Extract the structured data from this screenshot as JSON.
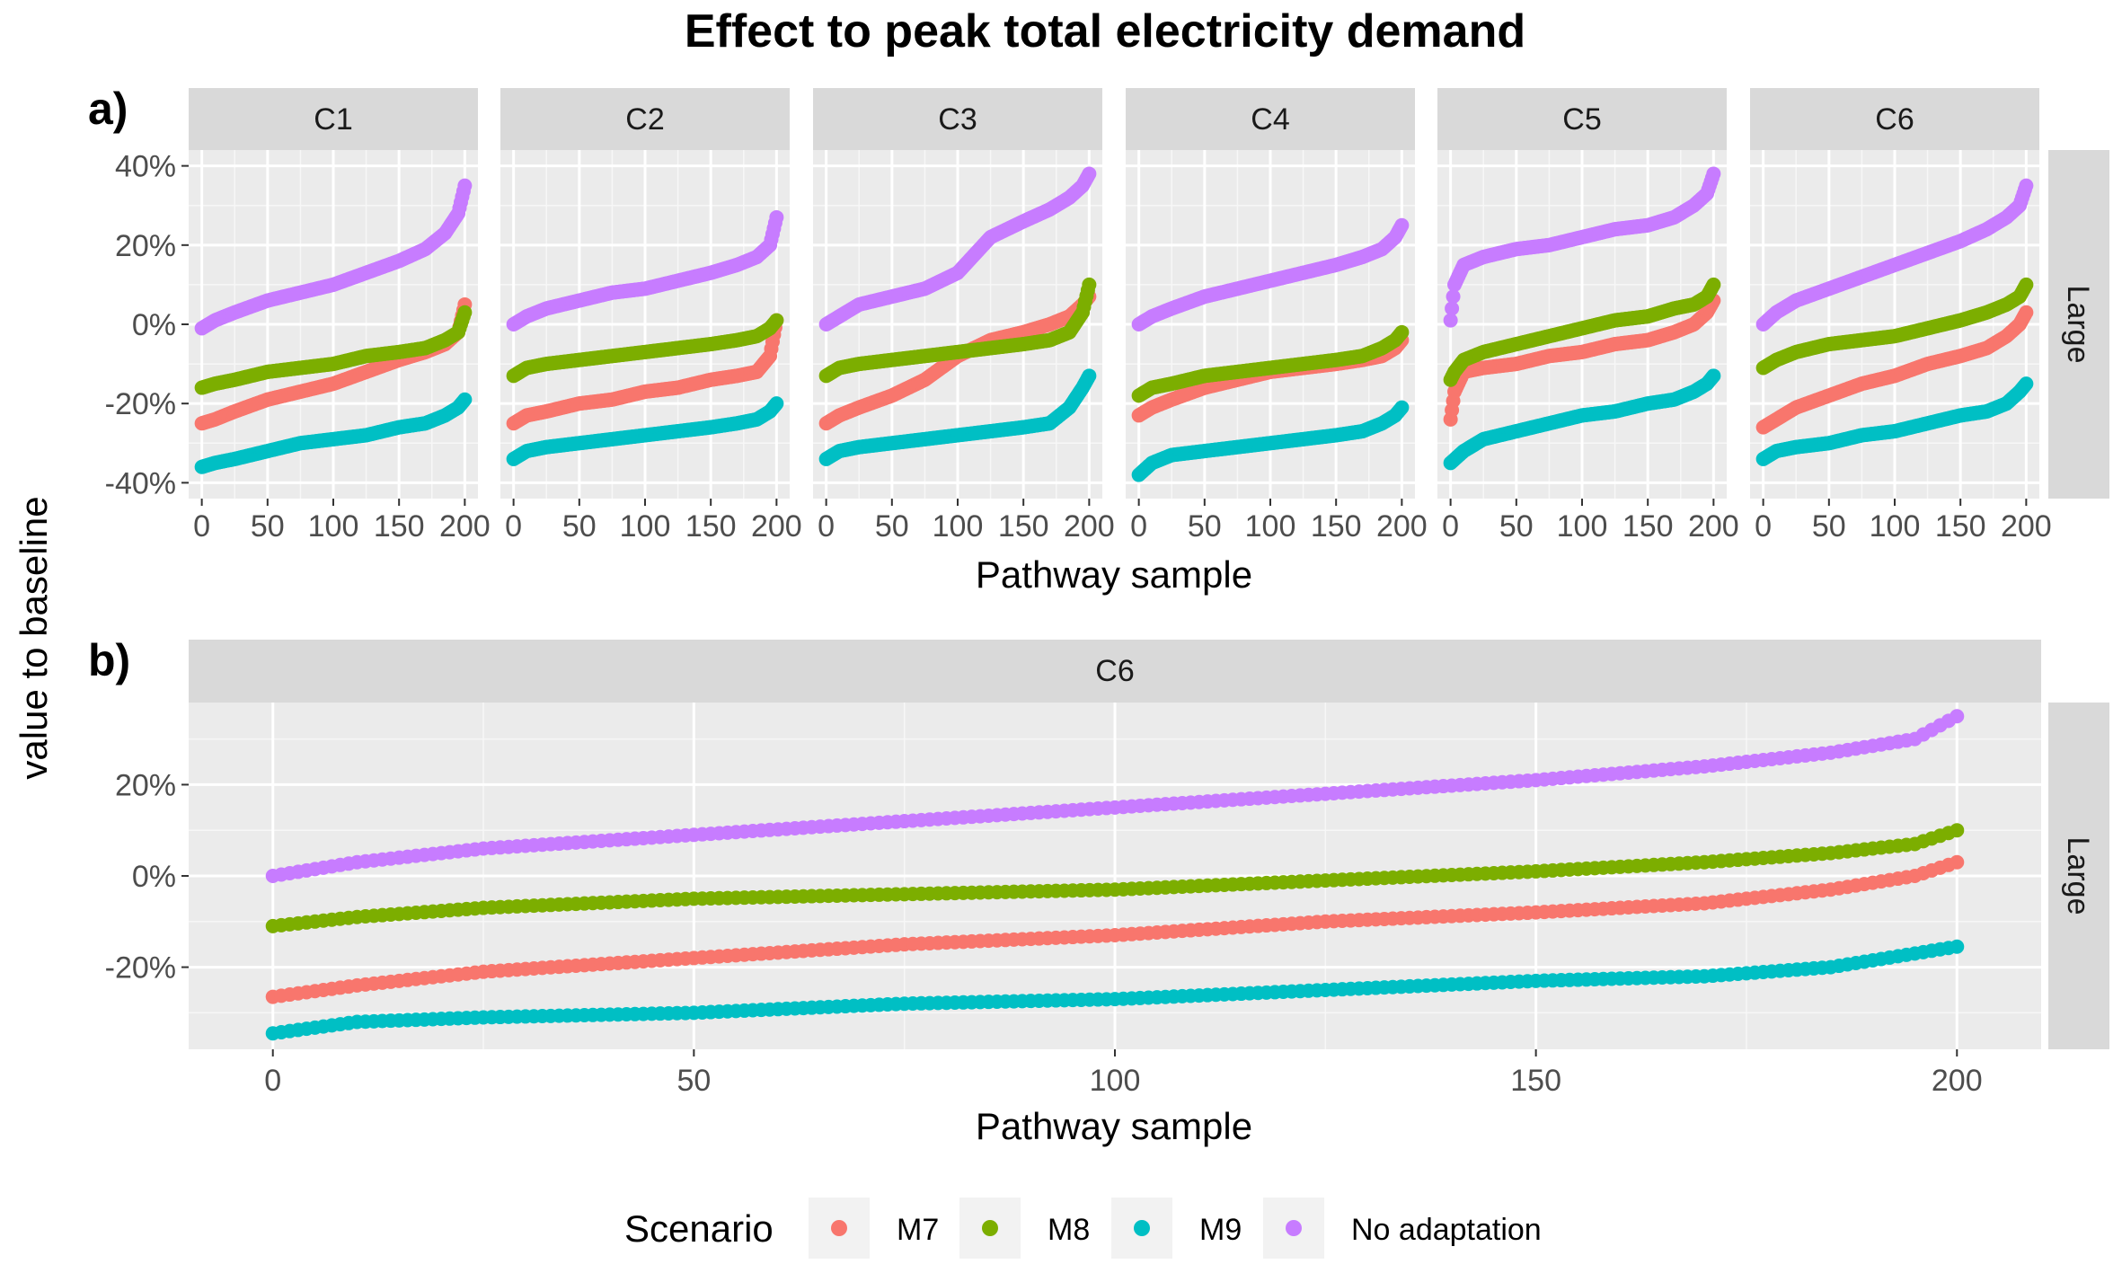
{
  "title": "Effect to peak total electricity demand",
  "ylabel": "value to baseline",
  "panel_a_tag": "a)",
  "panel_b_tag": "b)",
  "legend": {
    "title": "Scenario",
    "items": [
      {
        "name": "M7",
        "color": "#F8766D"
      },
      {
        "name": "M8",
        "color": "#7CAE00"
      },
      {
        "name": "M9",
        "color": "#00BFC4"
      },
      {
        "name": "No adaptation",
        "color": "#C77CFF"
      }
    ]
  },
  "chart_data": [
    {
      "type": "scatter",
      "panel": "a)",
      "facet_row_label": "Large",
      "xlabel": "Pathway sample",
      "ylabel": "value to baseline",
      "xlim": [
        0,
        200
      ],
      "ylim": [
        -40,
        40
      ],
      "x_ticks": [
        0,
        50,
        100,
        150,
        200
      ],
      "x_tick_labels": [
        "0",
        "50",
        "100",
        "150",
        "200"
      ],
      "y_ticks": [
        -40,
        -20,
        0,
        20,
        40
      ],
      "y_tick_labels": [
        "-40%",
        "-20%",
        "0%",
        "20%",
        "40%"
      ],
      "grid": true,
      "facets": [
        {
          "label": "C1",
          "series": [
            {
              "name": "M7",
              "x": [
                0,
                10,
                25,
                50,
                75,
                100,
                125,
                150,
                170,
                185,
                195,
                200
              ],
              "values": [
                -25,
                -24,
                -22,
                -19,
                -17,
                -15,
                -12,
                -9,
                -7,
                -5,
                -2,
                5
              ]
            },
            {
              "name": "M8",
              "x": [
                0,
                10,
                25,
                50,
                75,
                100,
                125,
                150,
                170,
                185,
                195,
                200
              ],
              "values": [
                -16,
                -15,
                -14,
                -12,
                -11,
                -10,
                -8,
                -7,
                -6,
                -4,
                -2,
                3
              ]
            },
            {
              "name": "M9",
              "x": [
                0,
                10,
                25,
                50,
                75,
                100,
                125,
                150,
                170,
                185,
                195,
                200
              ],
              "values": [
                -36,
                -35,
                -34,
                -32,
                -30,
                -29,
                -28,
                -26,
                -25,
                -23,
                -21,
                -19
              ]
            },
            {
              "name": "No adaptation",
              "x": [
                0,
                10,
                25,
                50,
                75,
                100,
                125,
                150,
                170,
                185,
                195,
                200
              ],
              "values": [
                -1,
                1,
                3,
                6,
                8,
                10,
                13,
                16,
                19,
                23,
                28,
                35
              ]
            }
          ]
        },
        {
          "label": "C2",
          "series": [
            {
              "name": "M7",
              "x": [
                0,
                10,
                25,
                50,
                75,
                100,
                125,
                150,
                170,
                185,
                195,
                200
              ],
              "values": [
                -25,
                -23,
                -22,
                -20,
                -19,
                -17,
                -16,
                -14,
                -13,
                -12,
                -8,
                1
              ]
            },
            {
              "name": "M8",
              "x": [
                0,
                10,
                25,
                50,
                75,
                100,
                125,
                150,
                170,
                185,
                195,
                200
              ],
              "values": [
                -13,
                -11,
                -10,
                -9,
                -8,
                -7,
                -6,
                -5,
                -4,
                -3,
                -1,
                1
              ]
            },
            {
              "name": "M9",
              "x": [
                0,
                10,
                25,
                50,
                75,
                100,
                125,
                150,
                170,
                185,
                195,
                200
              ],
              "values": [
                -34,
                -32,
                -31,
                -30,
                -29,
                -28,
                -27,
                -26,
                -25,
                -24,
                -22,
                -20
              ]
            },
            {
              "name": "No adaptation",
              "x": [
                0,
                10,
                25,
                50,
                75,
                100,
                125,
                150,
                170,
                185,
                195,
                200
              ],
              "values": [
                0,
                2,
                4,
                6,
                8,
                9,
                11,
                13,
                15,
                17,
                20,
                27
              ]
            }
          ]
        },
        {
          "label": "C3",
          "series": [
            {
              "name": "M7",
              "x": [
                0,
                10,
                25,
                50,
                75,
                100,
                125,
                150,
                170,
                185,
                195,
                200
              ],
              "values": [
                -25,
                -23,
                -21,
                -18,
                -14,
                -8,
                -4,
                -2,
                0,
                2,
                5,
                7
              ]
            },
            {
              "name": "M8",
              "x": [
                0,
                10,
                25,
                50,
                75,
                100,
                125,
                150,
                170,
                185,
                195,
                200
              ],
              "values": [
                -13,
                -11,
                -10,
                -9,
                -8,
                -7,
                -6,
                -5,
                -4,
                -2,
                3,
                10
              ]
            },
            {
              "name": "M9",
              "x": [
                0,
                10,
                25,
                50,
                75,
                100,
                125,
                150,
                170,
                185,
                195,
                200
              ],
              "values": [
                -34,
                -32,
                -31,
                -30,
                -29,
                -28,
                -27,
                -26,
                -25,
                -21,
                -16,
                -13
              ]
            },
            {
              "name": "No adaptation",
              "x": [
                0,
                10,
                25,
                50,
                75,
                100,
                125,
                150,
                170,
                185,
                195,
                200
              ],
              "values": [
                0,
                2,
                5,
                7,
                9,
                13,
                22,
                26,
                29,
                32,
                35,
                38
              ]
            }
          ]
        },
        {
          "label": "C4",
          "series": [
            {
              "name": "M7",
              "x": [
                0,
                10,
                25,
                50,
                75,
                100,
                125,
                150,
                170,
                185,
                195,
                200
              ],
              "values": [
                -23,
                -21,
                -19,
                -16,
                -14,
                -12,
                -11,
                -10,
                -9,
                -8,
                -6,
                -4
              ]
            },
            {
              "name": "M8",
              "x": [
                0,
                10,
                25,
                50,
                75,
                100,
                125,
                150,
                170,
                185,
                195,
                200
              ],
              "values": [
                -18,
                -16,
                -15,
                -13,
                -12,
                -11,
                -10,
                -9,
                -8,
                -6,
                -4,
                -2
              ]
            },
            {
              "name": "M9",
              "x": [
                0,
                10,
                25,
                50,
                75,
                100,
                125,
                150,
                170,
                185,
                195,
                200
              ],
              "values": [
                -38,
                -35,
                -33,
                -32,
                -31,
                -30,
                -29,
                -28,
                -27,
                -25,
                -23,
                -21
              ]
            },
            {
              "name": "No adaptation",
              "x": [
                0,
                10,
                25,
                50,
                75,
                100,
                125,
                150,
                170,
                185,
                195,
                200
              ],
              "values": [
                0,
                2,
                4,
                7,
                9,
                11,
                13,
                15,
                17,
                19,
                22,
                25
              ]
            }
          ]
        },
        {
          "label": "C5",
          "series": [
            {
              "name": "M7",
              "x": [
                0,
                3,
                10,
                25,
                50,
                75,
                100,
                125,
                150,
                170,
                185,
                195,
                200
              ],
              "values": [
                -24,
                -17,
                -12,
                -11,
                -10,
                -8,
                -7,
                -5,
                -4,
                -2,
                0,
                3,
                6
              ]
            },
            {
              "name": "M8",
              "x": [
                0,
                3,
                10,
                25,
                50,
                75,
                100,
                125,
                150,
                170,
                185,
                195,
                200
              ],
              "values": [
                -14,
                -12,
                -9,
                -7,
                -5,
                -3,
                -1,
                1,
                2,
                4,
                5,
                7,
                10
              ]
            },
            {
              "name": "M9",
              "x": [
                0,
                10,
                25,
                50,
                75,
                100,
                125,
                150,
                170,
                185,
                195,
                200
              ],
              "values": [
                -35,
                -32,
                -29,
                -27,
                -25,
                -23,
                -22,
                -20,
                -19,
                -17,
                -15,
                -13
              ]
            },
            {
              "name": "No adaptation",
              "x": [
                0,
                3,
                10,
                25,
                50,
                75,
                100,
                125,
                150,
                170,
                185,
                195,
                200
              ],
              "values": [
                1,
                10,
                15,
                17,
                19,
                20,
                22,
                24,
                25,
                27,
                30,
                33,
                38
              ]
            }
          ]
        },
        {
          "label": "C6",
          "series": [
            {
              "name": "M7",
              "x": [
                0,
                10,
                25,
                50,
                75,
                100,
                125,
                150,
                170,
                185,
                195,
                200
              ],
              "values": [
                -26,
                -24,
                -21,
                -18,
                -15,
                -13,
                -10,
                -8,
                -6,
                -3,
                0,
                3
              ]
            },
            {
              "name": "M8",
              "x": [
                0,
                10,
                25,
                50,
                75,
                100,
                125,
                150,
                170,
                185,
                195,
                200
              ],
              "values": [
                -11,
                -9,
                -7,
                -5,
                -4,
                -3,
                -1,
                1,
                3,
                5,
                7,
                10
              ]
            },
            {
              "name": "M9",
              "x": [
                0,
                10,
                25,
                50,
                75,
                100,
                125,
                150,
                170,
                185,
                195,
                200
              ],
              "values": [
                -34,
                -32,
                -31,
                -30,
                -28,
                -27,
                -25,
                -23,
                -22,
                -20,
                -17,
                -15
              ]
            },
            {
              "name": "No adaptation",
              "x": [
                0,
                10,
                25,
                50,
                75,
                100,
                125,
                150,
                170,
                185,
                195,
                200
              ],
              "values": [
                0,
                3,
                6,
                9,
                12,
                15,
                18,
                21,
                24,
                27,
                30,
                35
              ]
            }
          ]
        }
      ]
    },
    {
      "type": "scatter",
      "panel": "b)",
      "facet_label": "C6",
      "facet_row_label": "Large",
      "xlabel": "Pathway sample",
      "ylabel": "value to baseline",
      "xlim": [
        -10,
        210
      ],
      "ylim": [
        -38,
        38
      ],
      "x_ticks": [
        0,
        50,
        100,
        150,
        200
      ],
      "x_tick_labels": [
        "0",
        "50",
        "100",
        "150",
        "200"
      ],
      "y_ticks": [
        -20,
        0,
        20
      ],
      "y_tick_labels": [
        "-20%",
        "0%",
        "20%"
      ],
      "grid": true,
      "series": [
        {
          "name": "M7",
          "x": [
            0,
            10,
            25,
            50,
            75,
            100,
            125,
            150,
            170,
            185,
            195,
            200
          ],
          "values": [
            -26.5,
            -24,
            -21,
            -18,
            -15,
            -13,
            -10,
            -8,
            -6,
            -3,
            0,
            3
          ]
        },
        {
          "name": "M8",
          "x": [
            0,
            10,
            25,
            50,
            75,
            100,
            125,
            150,
            170,
            185,
            195,
            200
          ],
          "values": [
            -11,
            -9,
            -7,
            -5,
            -4,
            -3,
            -1,
            1,
            3,
            5,
            7,
            10
          ]
        },
        {
          "name": "M9",
          "x": [
            0,
            10,
            25,
            50,
            75,
            100,
            125,
            150,
            170,
            185,
            195,
            200
          ],
          "values": [
            -34.5,
            -32,
            -31,
            -30,
            -28,
            -27,
            -25,
            -23,
            -22,
            -20,
            -17,
            -15.5
          ]
        },
        {
          "name": "No adaptation",
          "x": [
            0,
            10,
            25,
            50,
            75,
            100,
            125,
            150,
            170,
            185,
            195,
            200
          ],
          "values": [
            0,
            3,
            6,
            9,
            12,
            15,
            18,
            21,
            24,
            27,
            30,
            35
          ]
        }
      ]
    }
  ]
}
